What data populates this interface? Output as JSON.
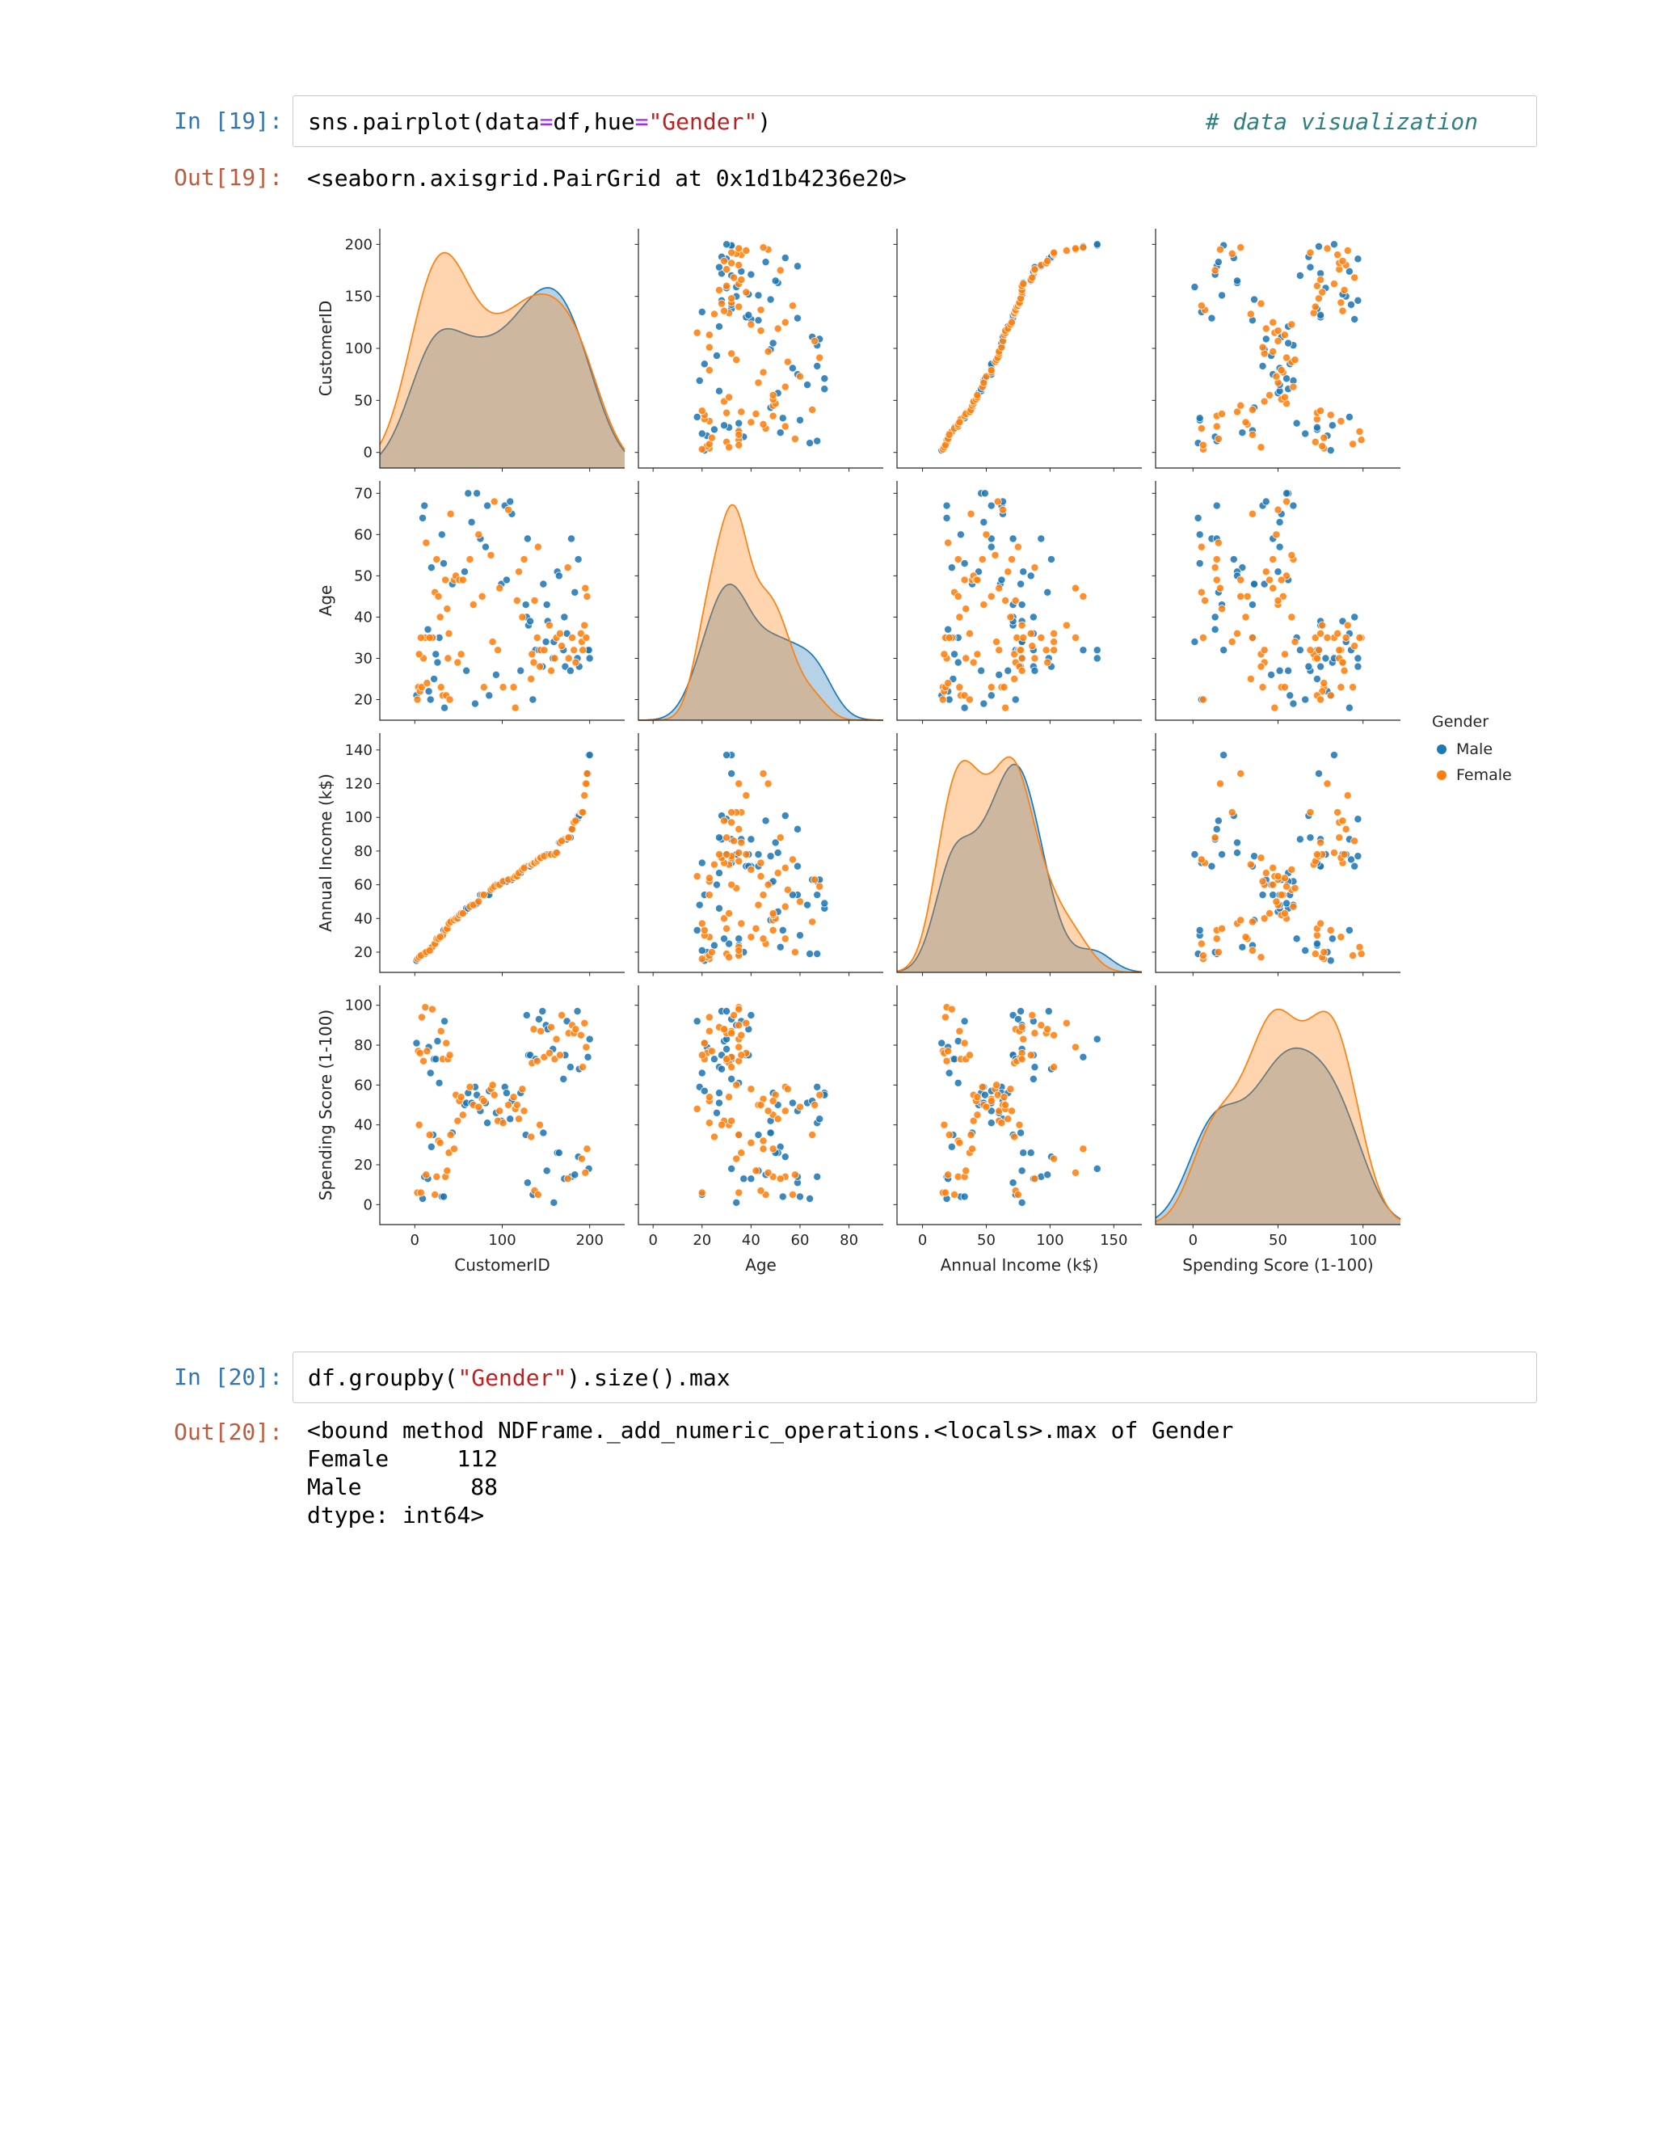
{
  "colors": {
    "in_prompt": "#3276b1",
    "out_prompt": "#bf5b3d",
    "string_token": "#BA2121",
    "operator_token": "#AA22FF",
    "comment_token": "#2e8080",
    "male": "#1f77b4",
    "female": "#ff7f0e"
  },
  "cells": {
    "in19": {
      "prompt": "In [19]:",
      "parts": [
        {
          "t": "sns.pairplot(data",
          "c": "p"
        },
        {
          "t": "=",
          "c": "o"
        },
        {
          "t": "df,hue",
          "c": "p"
        },
        {
          "t": "=",
          "c": "o"
        },
        {
          "t": "\"Gender\"",
          "c": "s"
        },
        {
          "t": ")",
          "c": "p"
        }
      ],
      "comment": "# data visualization"
    },
    "out19": {
      "prompt": "Out[19]:",
      "text": "<seaborn.axisgrid.PairGrid at 0x1d1b4236e20>"
    },
    "in20": {
      "prompt": "In [20]:",
      "parts": [
        {
          "t": "df.groupby(",
          "c": "p"
        },
        {
          "t": "\"Gender\"",
          "c": "s"
        },
        {
          "t": ").size().max",
          "c": "p"
        }
      ]
    },
    "out20": {
      "prompt": "Out[20]:",
      "text": "<bound method NDFrame._add_numeric_operations.<locals>.max of Gender\nFemale     112\nMale        88\ndtype: int64>"
    }
  },
  "chart_data": {
    "type": "scatter_matrix",
    "diag": "kde",
    "legend_position": "right",
    "hue": {
      "title": "Gender",
      "classes": [
        {
          "name": "Male",
          "color": "#1f77b4"
        },
        {
          "name": "Female",
          "color": "#ff7f0e"
        }
      ]
    },
    "variables": [
      {
        "label": "CustomerID",
        "row_ticks": [
          0,
          50,
          100,
          150,
          200
        ],
        "row_lim": [
          -15,
          215
        ],
        "col_ticks": [
          0,
          100,
          200
        ],
        "col_lim": [
          -40,
          240
        ]
      },
      {
        "label": "Age",
        "row_ticks": [
          20,
          30,
          40,
          50,
          60,
          70
        ],
        "row_lim": [
          15,
          73
        ],
        "col_ticks": [
          0,
          20,
          40,
          60,
          80
        ],
        "col_lim": [
          -6,
          94
        ]
      },
      {
        "label": "Annual Income (k$)",
        "row_ticks": [
          20,
          40,
          60,
          80,
          100,
          120,
          140
        ],
        "row_lim": [
          8,
          150
        ],
        "col_ticks": [
          0,
          50,
          100,
          150
        ],
        "col_lim": [
          -20,
          172
        ]
      },
      {
        "label": "Spending Score (1-100)",
        "row_ticks": [
          0,
          20,
          40,
          60,
          80,
          100
        ],
        "row_lim": [
          -10,
          110
        ],
        "col_ticks": [
          0,
          50,
          100
        ],
        "col_lim": [
          -22,
          122
        ]
      }
    ],
    "record_fields": [
      "CustomerID",
      "Age",
      "Annual Income (k$)",
      "Spending Score (1-100)",
      "gender_index"
    ],
    "records": [
      [
        2,
        21,
        15,
        81,
        0
      ],
      [
        4,
        23,
        16,
        77,
        1
      ],
      [
        6,
        22,
        17,
        76,
        1
      ],
      [
        8,
        23,
        18,
        94,
        1
      ],
      [
        10,
        30,
        19,
        72,
        1
      ],
      [
        12,
        35,
        19,
        99,
        1
      ],
      [
        14,
        24,
        20,
        77,
        1
      ],
      [
        16,
        22,
        20,
        79,
        0
      ],
      [
        18,
        20,
        21,
        66,
        0
      ],
      [
        20,
        35,
        23,
        98,
        1
      ],
      [
        22,
        25,
        24,
        73,
        0
      ],
      [
        24,
        31,
        25,
        73,
        0
      ],
      [
        26,
        29,
        28,
        82,
        0
      ],
      [
        28,
        35,
        28,
        61,
        0
      ],
      [
        30,
        23,
        29,
        87,
        1
      ],
      [
        32,
        21,
        30,
        73,
        1
      ],
      [
        34,
        18,
        33,
        92,
        0
      ],
      [
        36,
        21,
        33,
        81,
        1
      ],
      [
        38,
        30,
        34,
        73,
        1
      ],
      [
        40,
        20,
        37,
        75,
        1
      ],
      [
        3,
        20,
        16,
        6,
        1
      ],
      [
        5,
        31,
        17,
        40,
        1
      ],
      [
        7,
        35,
        18,
        6,
        1
      ],
      [
        9,
        64,
        19,
        3,
        0
      ],
      [
        11,
        67,
        19,
        14,
        0
      ],
      [
        13,
        58,
        20,
        15,
        1
      ],
      [
        15,
        37,
        20,
        13,
        0
      ],
      [
        17,
        35,
        21,
        35,
        1
      ],
      [
        19,
        52,
        23,
        29,
        0
      ],
      [
        21,
        35,
        24,
        35,
        0
      ],
      [
        23,
        46,
        25,
        5,
        1
      ],
      [
        25,
        54,
        28,
        14,
        1
      ],
      [
        27,
        45,
        28,
        32,
        1
      ],
      [
        29,
        40,
        29,
        31,
        1
      ],
      [
        31,
        60,
        30,
        4,
        0
      ],
      [
        33,
        53,
        33,
        4,
        0
      ],
      [
        35,
        49,
        33,
        14,
        1
      ],
      [
        37,
        42,
        34,
        17,
        1
      ],
      [
        39,
        36,
        37,
        26,
        1
      ],
      [
        41,
        65,
        38,
        35,
        1
      ],
      [
        43,
        48,
        39,
        36,
        0
      ],
      [
        45,
        49,
        39,
        28,
        1
      ],
      [
        47,
        50,
        40,
        55,
        1
      ],
      [
        49,
        29,
        40,
        42,
        1
      ],
      [
        51,
        49,
        42,
        52,
        1
      ],
      [
        53,
        31,
        43,
        54,
        1
      ],
      [
        55,
        49,
        43,
        45,
        1
      ],
      [
        57,
        51,
        44,
        50,
        0
      ],
      [
        59,
        27,
        46,
        51,
        0
      ],
      [
        61,
        70,
        46,
        56,
        0
      ],
      [
        63,
        54,
        47,
        59,
        1
      ],
      [
        65,
        63,
        48,
        51,
        0
      ],
      [
        67,
        43,
        48,
        50,
        1
      ],
      [
        69,
        19,
        48,
        59,
        0
      ],
      [
        71,
        70,
        49,
        55,
        0
      ],
      [
        73,
        60,
        50,
        49,
        1
      ],
      [
        75,
        59,
        54,
        47,
        0
      ],
      [
        77,
        45,
        54,
        53,
        1
      ],
      [
        79,
        23,
        54,
        52,
        1
      ],
      [
        81,
        57,
        54,
        51,
        0
      ],
      [
        83,
        67,
        54,
        41,
        0
      ],
      [
        85,
        21,
        54,
        57,
        0
      ],
      [
        87,
        55,
        57,
        58,
        1
      ],
      [
        89,
        34,
        58,
        60,
        1
      ],
      [
        91,
        68,
        59,
        55,
        1
      ],
      [
        93,
        26,
        60,
        46,
        0
      ],
      [
        95,
        32,
        60,
        42,
        1
      ],
      [
        97,
        47,
        60,
        47,
        1
      ],
      [
        99,
        48,
        61,
        42,
        0
      ],
      [
        101,
        23,
        62,
        41,
        1
      ],
      [
        103,
        67,
        62,
        59,
        0
      ],
      [
        105,
        49,
        62,
        56,
        0
      ],
      [
        107,
        66,
        63,
        50,
        1
      ],
      [
        109,
        68,
        63,
        43,
        0
      ],
      [
        111,
        65,
        63,
        52,
        0
      ],
      [
        113,
        23,
        64,
        54,
        1
      ],
      [
        115,
        18,
        65,
        48,
        1
      ],
      [
        117,
        44,
        65,
        50,
        1
      ],
      [
        119,
        51,
        67,
        43,
        1
      ],
      [
        121,
        27,
        67,
        56,
        0
      ],
      [
        123,
        40,
        69,
        58,
        1
      ],
      [
        125,
        54,
        70,
        47,
        1
      ],
      [
        127,
        43,
        71,
        35,
        0
      ],
      [
        128,
        40,
        71,
        95,
        0
      ],
      [
        129,
        59,
        71,
        11,
        0
      ],
      [
        130,
        38,
        71,
        75,
        0
      ],
      [
        132,
        39,
        71,
        75,
        0
      ],
      [
        133,
        25,
        72,
        34,
        1
      ],
      [
        134,
        31,
        72,
        71,
        1
      ],
      [
        135,
        20,
        73,
        5,
        0
      ],
      [
        136,
        29,
        73,
        88,
        1
      ],
      [
        137,
        44,
        73,
        7,
        1
      ],
      [
        138,
        32,
        73,
        73,
        0
      ],
      [
        140,
        35,
        74,
        72,
        1
      ],
      [
        141,
        57,
        75,
        5,
        1
      ],
      [
        142,
        32,
        75,
        93,
        0
      ],
      [
        143,
        28,
        76,
        40,
        1
      ],
      [
        144,
        32,
        76,
        87,
        1
      ],
      [
        146,
        28,
        77,
        97,
        0
      ],
      [
        147,
        48,
        77,
        36,
        0
      ],
      [
        148,
        32,
        77,
        74,
        1
      ],
      [
        150,
        34,
        78,
        90,
        0
      ],
      [
        151,
        43,
        78,
        17,
        0
      ],
      [
        152,
        39,
        78,
        88,
        0
      ],
      [
        154,
        38,
        78,
        76,
        1
      ],
      [
        156,
        27,
        78,
        89,
        1
      ],
      [
        158,
        30,
        78,
        78,
        0
      ],
      [
        159,
        34,
        78,
        1,
        0
      ],
      [
        160,
        30,
        78,
        73,
        1
      ],
      [
        162,
        35,
        79,
        83,
        1
      ],
      [
        163,
        51,
        79,
        26,
        0
      ],
      [
        165,
        50,
        85,
        26,
        0
      ],
      [
        166,
        36,
        85,
        75,
        1
      ],
      [
        168,
        33,
        86,
        95,
        1
      ],
      [
        170,
        32,
        87,
        63,
        0
      ],
      [
        171,
        40,
        87,
        13,
        0
      ],
      [
        172,
        28,
        87,
        75,
        0
      ],
      [
        174,
        36,
        87,
        92,
        0
      ],
      [
        175,
        52,
        88,
        13,
        1
      ],
      [
        176,
        30,
        88,
        86,
        1
      ],
      [
        178,
        27,
        88,
        69,
        0
      ],
      [
        179,
        59,
        93,
        14,
        0
      ],
      [
        180,
        35,
        93,
        90,
        1
      ],
      [
        182,
        32,
        97,
        86,
        1
      ],
      [
        183,
        46,
        98,
        15,
        0
      ],
      [
        184,
        29,
        98,
        88,
        1
      ],
      [
        186,
        30,
        99,
        97,
        0
      ],
      [
        187,
        54,
        101,
        24,
        0
      ],
      [
        188,
        28,
        101,
        68,
        0
      ],
      [
        190,
        36,
        103,
        85,
        1
      ],
      [
        191,
        34,
        103,
        23,
        1
      ],
      [
        192,
        32,
        103,
        69,
        1
      ],
      [
        194,
        38,
        113,
        91,
        1
      ],
      [
        195,
        47,
        120,
        16,
        1
      ],
      [
        196,
        35,
        120,
        79,
        1
      ],
      [
        197,
        45,
        126,
        28,
        1
      ],
      [
        198,
        32,
        126,
        74,
        0
      ],
      [
        199,
        32,
        137,
        18,
        0
      ],
      [
        200,
        30,
        137,
        83,
        0
      ]
    ],
    "group_sizes_shown": {
      "Female": 112,
      "Male": 88
    }
  }
}
